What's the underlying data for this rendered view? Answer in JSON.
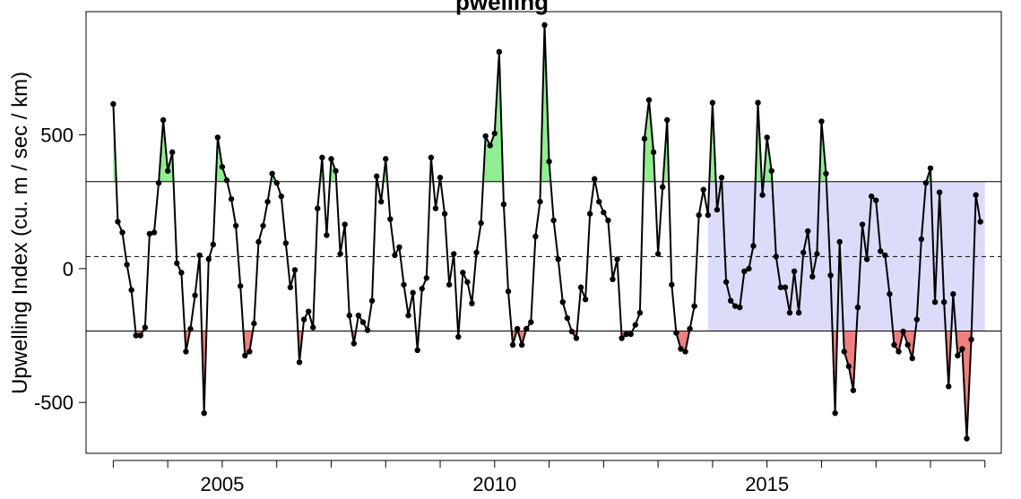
{
  "chart_data": {
    "type": "line",
    "title": "Upwelling Index",
    "title_visible_fragment": "pwelling",
    "ylabel": "Upwelling Index (cu. m / sec / km)",
    "xlabel": "",
    "xlim": [
      2002.5,
      2019.3
    ],
    "ylim": [
      -690,
      960
    ],
    "x_ticks": [
      2005,
      2010,
      2015
    ],
    "x_tick_labels": [
      "2005",
      "2010",
      "2015"
    ],
    "y_ticks": [
      -500,
      0,
      500
    ],
    "y_tick_labels": [
      "-500",
      "0",
      "500"
    ],
    "x_minor_tick_step": 1,
    "x_minor_tick_start": 2003,
    "x_minor_tick_end": 2019,
    "mean_line": 45,
    "upper_threshold": 325,
    "lower_threshold": -233,
    "highlight_box": {
      "x_start": 2013.92,
      "x_end": 2019.0,
      "y_start": -233,
      "y_end": 325
    },
    "colors": {
      "line": "#000000",
      "above_fill": "#90ee90",
      "below_fill": "#f08080",
      "highlight_fill": "#dcdcfa"
    },
    "start_year": 2003,
    "step_months": 1,
    "values": [
      615,
      175,
      135,
      15,
      -80,
      -250,
      -250,
      -220,
      130,
      135,
      320,
      555,
      365,
      435,
      20,
      -15,
      -310,
      -225,
      -100,
      50,
      -540,
      35,
      90,
      490,
      380,
      330,
      260,
      160,
      -65,
      -325,
      -310,
      -205,
      100,
      160,
      250,
      355,
      320,
      270,
      95,
      -70,
      -5,
      -350,
      -190,
      -160,
      -220,
      225,
      415,
      125,
      410,
      365,
      55,
      165,
      -175,
      -280,
      -175,
      -200,
      -230,
      -120,
      345,
      250,
      410,
      185,
      50,
      80,
      -60,
      -175,
      -90,
      -305,
      -75,
      -35,
      415,
      225,
      340,
      205,
      -60,
      55,
      -255,
      -15,
      -50,
      -130,
      60,
      170,
      495,
      460,
      505,
      810,
      240,
      -85,
      -285,
      -225,
      -285,
      -225,
      -200,
      120,
      250,
      910,
      400,
      180,
      35,
      -125,
      -185,
      -235,
      -260,
      -70,
      -115,
      205,
      335,
      250,
      210,
      180,
      -40,
      35,
      -260,
      -245,
      -245,
      -210,
      -165,
      485,
      630,
      435,
      55,
      305,
      555,
      -60,
      -240,
      -300,
      -310,
      -225,
      -140,
      200,
      295,
      200,
      620,
      220,
      340,
      -50,
      -120,
      -140,
      -145,
      -10,
      0,
      85,
      620,
      275,
      490,
      365,
      45,
      -70,
      -70,
      -165,
      -10,
      -165,
      60,
      140,
      -30,
      55,
      550,
      355,
      -25,
      -540,
      100,
      -310,
      -365,
      -455,
      -145,
      165,
      35,
      270,
      255,
      65,
      50,
      -95,
      -285,
      -310,
      -235,
      -285,
      -335,
      -190,
      110,
      320,
      375,
      -125,
      285,
      -125,
      -440,
      -95,
      -325,
      -300,
      -635,
      -265,
      275,
      175
    ]
  }
}
